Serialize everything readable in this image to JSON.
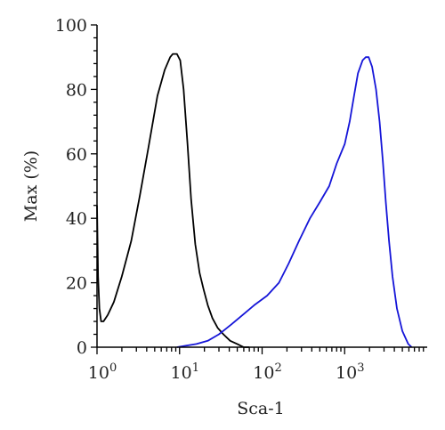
{
  "chart_data": {
    "type": "line",
    "title": "",
    "xlabel": "Sca-1",
    "ylabel": "Max (%)",
    "xscale": "log",
    "xlim": [
      1,
      10000
    ],
    "ylim": [
      0,
      100
    ],
    "grid": false,
    "legend": "none",
    "x_tick_labels": [
      {
        "value": 1,
        "base": "10",
        "exp": "0"
      },
      {
        "value": 10,
        "base": "10",
        "exp": "1"
      },
      {
        "value": 100,
        "base": "10",
        "exp": "2"
      },
      {
        "value": 1000,
        "base": "10",
        "exp": "3"
      }
    ],
    "y_tick_labels": [
      {
        "value": 0,
        "label": "0"
      },
      {
        "value": 20,
        "label": "20"
      },
      {
        "value": 40,
        "label": "40"
      },
      {
        "value": 60,
        "label": "60"
      },
      {
        "value": 80,
        "label": "80"
      },
      {
        "value": 100,
        "label": "100"
      }
    ],
    "series": [
      {
        "color": "#000000",
        "points": [
          [
            1.0,
            44
          ],
          [
            1.03,
            22
          ],
          [
            1.07,
            12
          ],
          [
            1.12,
            8
          ],
          [
            1.2,
            8
          ],
          [
            1.35,
            10
          ],
          [
            1.6,
            14
          ],
          [
            2.0,
            22
          ],
          [
            2.6,
            33
          ],
          [
            3.3,
            47
          ],
          [
            4.2,
            62
          ],
          [
            5.4,
            78
          ],
          [
            6.6,
            86
          ],
          [
            7.7,
            90
          ],
          [
            8.3,
            91
          ],
          [
            9.3,
            91
          ],
          [
            10.2,
            89
          ],
          [
            11.2,
            80
          ],
          [
            12.5,
            63
          ],
          [
            13.8,
            46
          ],
          [
            15.5,
            32
          ],
          [
            17.5,
            23
          ],
          [
            19.5,
            18
          ],
          [
            22,
            13
          ],
          [
            25,
            9
          ],
          [
            29,
            6
          ],
          [
            34,
            4
          ],
          [
            41,
            2
          ],
          [
            50,
            1
          ],
          [
            60,
            0
          ],
          [
            70,
            0
          ]
        ]
      },
      {
        "color": "#1515d8",
        "points": [
          [
            9.3,
            0
          ],
          [
            12,
            0.5
          ],
          [
            16,
            1
          ],
          [
            22,
            2
          ],
          [
            30,
            4
          ],
          [
            42,
            7
          ],
          [
            58,
            10
          ],
          [
            80,
            13
          ],
          [
            115,
            16
          ],
          [
            160,
            20
          ],
          [
            210,
            26
          ],
          [
            280,
            33
          ],
          [
            380,
            40
          ],
          [
            500,
            45
          ],
          [
            650,
            50
          ],
          [
            800,
            57
          ],
          [
            1000,
            63
          ],
          [
            1150,
            70
          ],
          [
            1300,
            78
          ],
          [
            1450,
            85
          ],
          [
            1650,
            89
          ],
          [
            1800,
            90
          ],
          [
            1950,
            90
          ],
          [
            2150,
            87
          ],
          [
            2400,
            80
          ],
          [
            2650,
            70
          ],
          [
            2900,
            58
          ],
          [
            3150,
            45
          ],
          [
            3450,
            33
          ],
          [
            3800,
            22
          ],
          [
            4300,
            12
          ],
          [
            5000,
            5
          ],
          [
            5900,
            1
          ],
          [
            6500,
            0
          ]
        ]
      }
    ]
  }
}
